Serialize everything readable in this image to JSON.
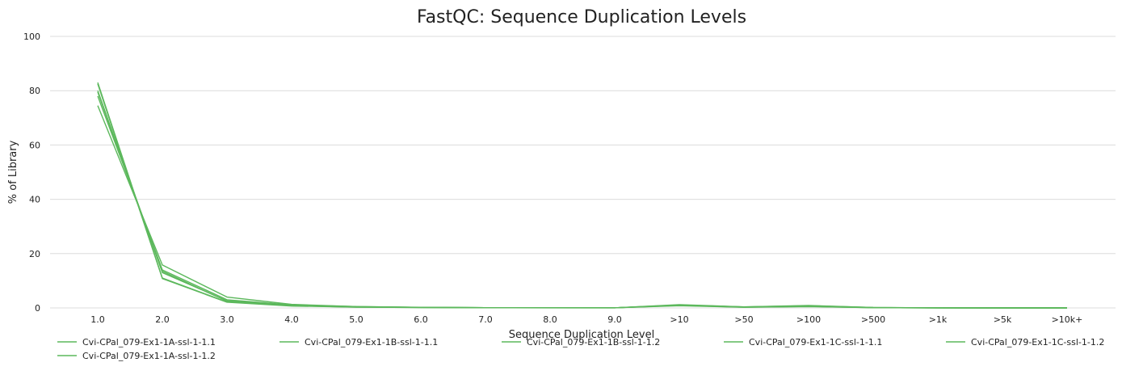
{
  "chart_data": {
    "type": "line",
    "title": "FastQC: Sequence Duplication Levels",
    "xlabel": "Sequence Duplication Level",
    "ylabel": "% of Library",
    "categories": [
      "1.0",
      "2.0",
      "3.0",
      "4.0",
      "5.0",
      "6.0",
      "7.0",
      "8.0",
      "9.0",
      ">10",
      ">50",
      ">100",
      ">500",
      ">1k",
      ">5k",
      ">10k+"
    ],
    "y_ticks": [
      "0",
      "20",
      "40",
      "60",
      "80",
      "100"
    ],
    "ylim": [
      0,
      100
    ],
    "grid": true,
    "legend_position": "bottom",
    "series": [
      {
        "name": "Cvi-CPal_079-Ex1-1A-ssl-1-1.1",
        "color": "#5cb85c",
        "values": [
          79.5,
          13.5,
          2.5,
          0.9,
          0.4,
          0.2,
          0.1,
          0.05,
          0.05,
          1.0,
          0.3,
          0.6,
          0.1,
          0.02,
          0.0,
          0.0
        ]
      },
      {
        "name": "Cvi-CPal_079-Ex1-1B-ssl-1-1.1",
        "color": "#5cb85c",
        "values": [
          83.0,
          11.0,
          2.2,
          0.8,
          0.3,
          0.15,
          0.08,
          0.05,
          0.04,
          0.9,
          0.3,
          0.5,
          0.1,
          0.02,
          0.0,
          0.0
        ]
      },
      {
        "name": "Cvi-CPal_079-Ex1-1B-ssl-1-1.2",
        "color": "#5cb85c",
        "values": [
          80.0,
          13.0,
          2.6,
          1.0,
          0.4,
          0.2,
          0.1,
          0.06,
          0.05,
          1.1,
          0.35,
          0.7,
          0.12,
          0.03,
          0.0,
          0.0
        ]
      },
      {
        "name": "Cvi-CPal_079-Ex1-1C-ssl-1-1.1",
        "color": "#5cb85c",
        "values": [
          78.0,
          14.0,
          3.0,
          1.1,
          0.5,
          0.2,
          0.1,
          0.06,
          0.05,
          1.0,
          0.4,
          0.8,
          0.15,
          0.03,
          0.0,
          0.0
        ]
      },
      {
        "name": "Cvi-CPal_079-Ex1-1C-ssl-1-1.2",
        "color": "#5cb85c",
        "values": [
          82.5,
          10.8,
          2.1,
          0.7,
          0.3,
          0.15,
          0.08,
          0.04,
          0.04,
          0.8,
          0.25,
          0.5,
          0.1,
          0.02,
          0.0,
          0.0
        ]
      },
      {
        "name": "Cvi-CPal_079-Ex1-1A-ssl-1-1.2",
        "color": "#5cb85c",
        "values": [
          74.5,
          15.8,
          4.0,
          1.3,
          0.5,
          0.25,
          0.1,
          0.06,
          0.05,
          1.2,
          0.4,
          0.9,
          0.15,
          0.03,
          0.0,
          0.0
        ]
      }
    ]
  }
}
